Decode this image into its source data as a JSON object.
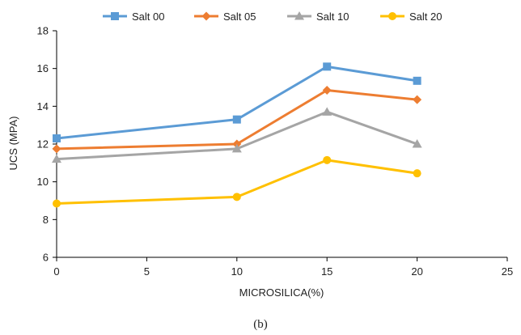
{
  "chart_data": {
    "type": "line",
    "xlabel": "MICROSILICA(%)",
    "ylabel": "UCS (MPA)",
    "caption": "(b)",
    "xlim": [
      0,
      25
    ],
    "ylim": [
      6,
      18
    ],
    "x_ticks": [
      "0",
      "5",
      "10",
      "15",
      "20",
      "25"
    ],
    "y_ticks": [
      "6",
      "8",
      "10",
      "12",
      "14",
      "16",
      "18"
    ],
    "grid": false,
    "legend_position": "top",
    "series": [
      {
        "name": "Salt 00",
        "color": "#5b9bd5",
        "marker": "square",
        "x": [
          0,
          10,
          15,
          20
        ],
        "values": [
          12.3,
          13.3,
          16.1,
          15.35
        ]
      },
      {
        "name": "Salt 05",
        "color": "#ed7d31",
        "marker": "diamond",
        "x": [
          0,
          10,
          15,
          20
        ],
        "values": [
          11.75,
          12.0,
          14.85,
          14.35
        ]
      },
      {
        "name": "Salt 10",
        "color": "#a5a5a5",
        "marker": "triangle",
        "x": [
          0,
          10,
          15,
          20
        ],
        "values": [
          11.2,
          11.75,
          13.7,
          12.0
        ]
      },
      {
        "name": "Salt 20",
        "color": "#ffc000",
        "marker": "circle",
        "x": [
          0,
          10,
          15,
          20
        ],
        "values": [
          8.85,
          9.2,
          11.15,
          10.45
        ]
      }
    ]
  }
}
